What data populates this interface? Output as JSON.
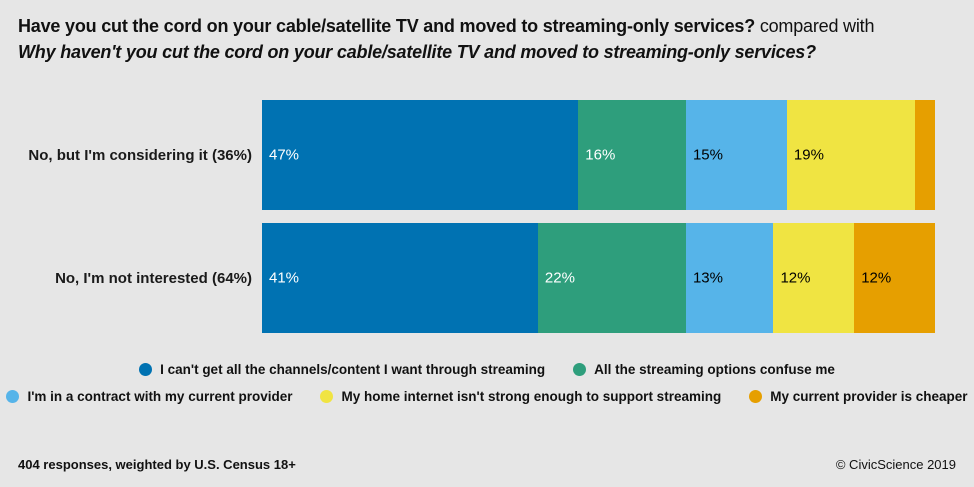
{
  "header": {
    "title_bold": "Have you cut the cord on your cable/satellite TV and moved to streaming-only services?",
    "title_compared": " compared with",
    "subtitle": "Why haven't you cut the cord on your cable/satellite TV and moved to streaming-only services?"
  },
  "chart_data": {
    "type": "bar",
    "orientation": "horizontal",
    "stacked": true,
    "xlim": [
      0,
      100
    ],
    "grid": false,
    "legend_position": "bottom",
    "series": [
      {
        "name": "I can't get all the channels/content I want through streaming",
        "color": "#0072b2",
        "text_color": "#ffffff"
      },
      {
        "name": "All the streaming options confuse me",
        "color": "#2e9e7c",
        "text_color": "#ffffff"
      },
      {
        "name": "I'm in a contract with my current provider",
        "color": "#56b4e9",
        "text_color": "#000000"
      },
      {
        "name": "My home internet isn't strong enough to support streaming",
        "color": "#f0e442",
        "text_color": "#000000"
      },
      {
        "name": "My current provider is cheaper",
        "color": "#e69f00",
        "text_color": "#000000"
      }
    ],
    "rows": [
      {
        "category": "No, but I'm considering it (36%)",
        "values": [
          47,
          16,
          15,
          19,
          3
        ],
        "labels": [
          "47%",
          "16%",
          "15%",
          "19%",
          ""
        ]
      },
      {
        "category": "No, I'm not interested (64%)",
        "values": [
          41,
          22,
          13,
          12,
          12
        ],
        "labels": [
          "41%",
          "22%",
          "13%",
          "12%",
          "12%"
        ]
      }
    ]
  },
  "legend": {
    "rows": [
      [
        0,
        1
      ],
      [
        2,
        3,
        4
      ]
    ]
  },
  "footer": {
    "left": "404 responses, weighted by U.S. Census 18+",
    "right": "© CivicScience 2019"
  }
}
